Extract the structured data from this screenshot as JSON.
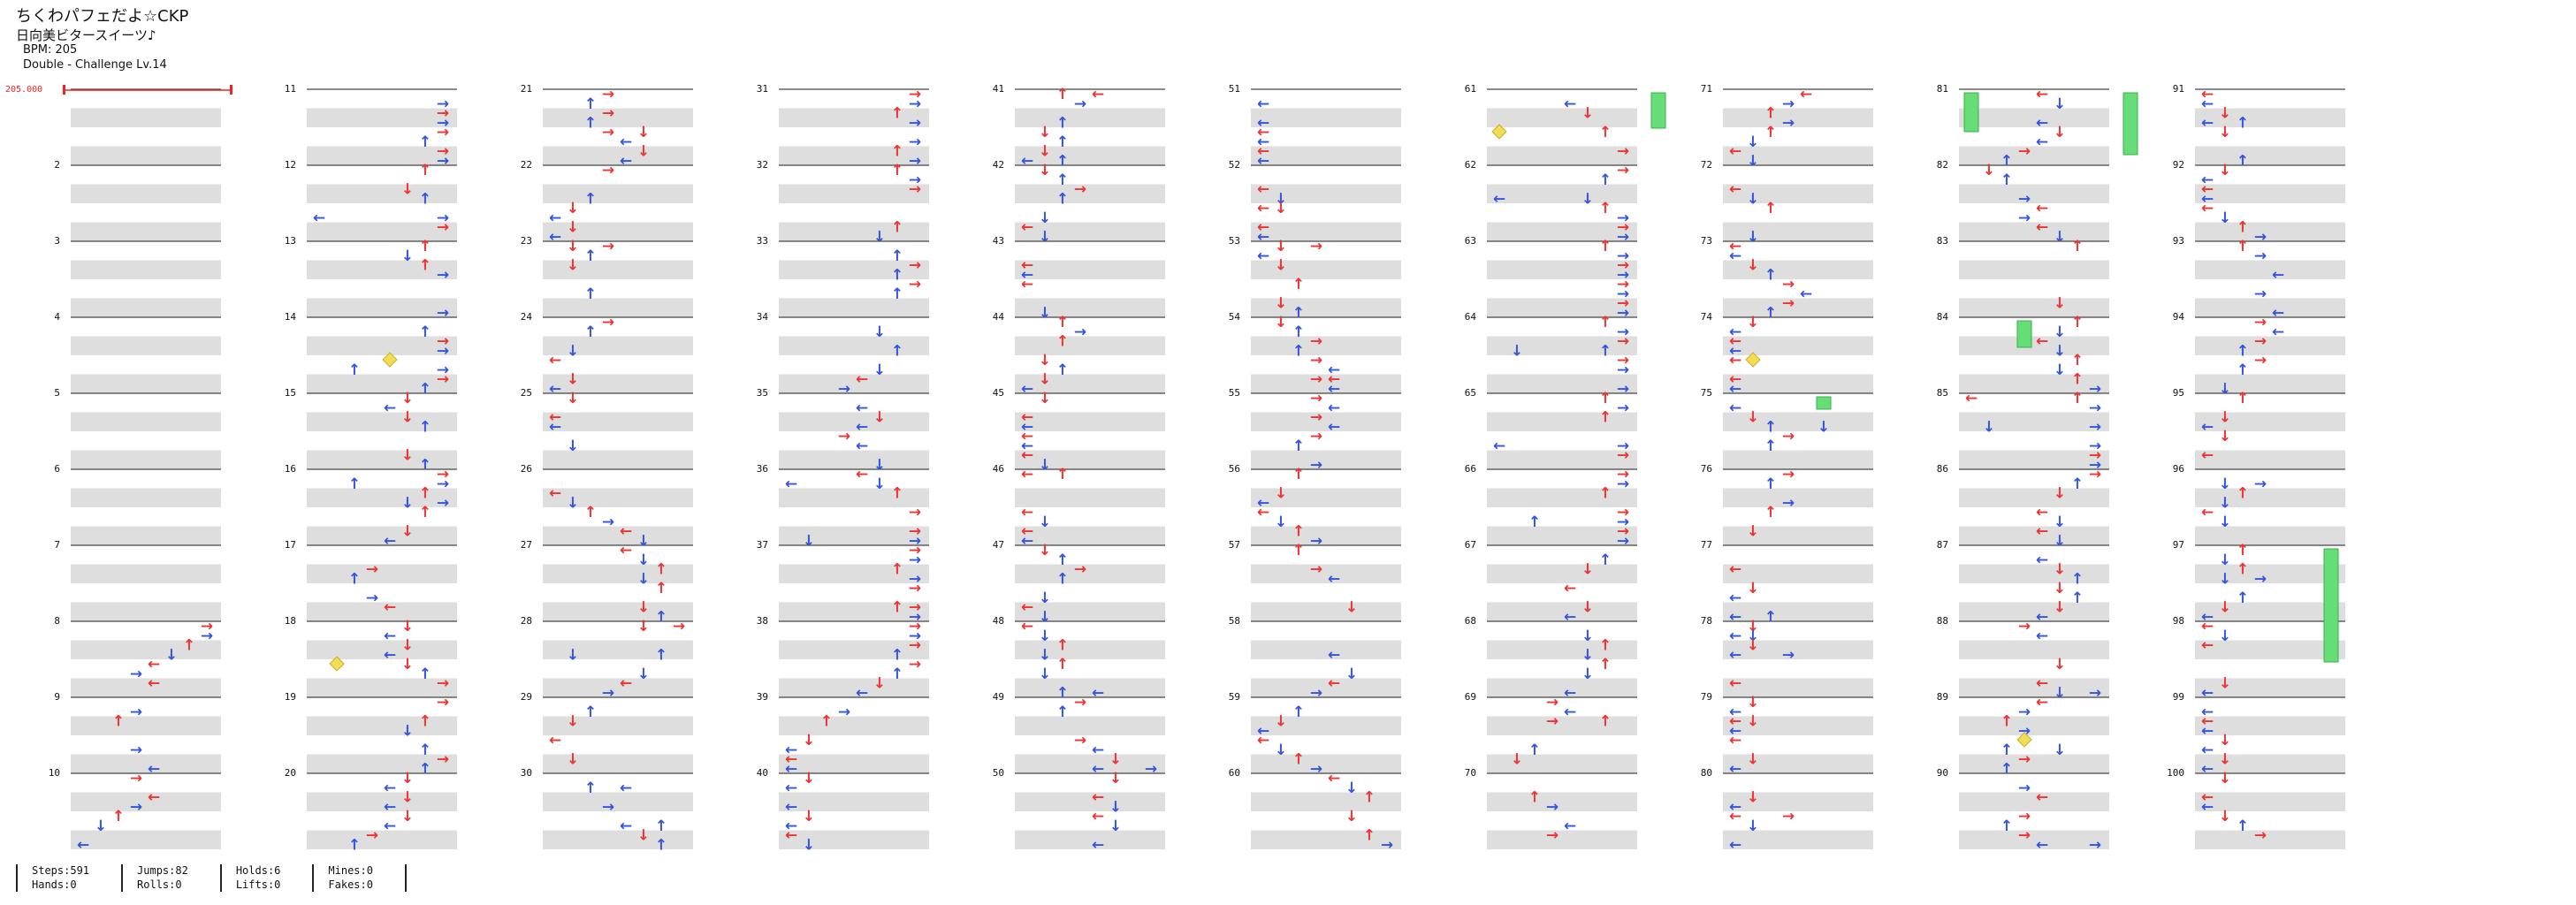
{
  "title": "ちくわパフェだよ☆CKP",
  "artist": "日向美ビタースイーツ♪",
  "bpm_text": "BPM: 205",
  "difficulty_text": "Double - Challenge Lv.14",
  "bpm_marker": "205.000",
  "measure_numbers": [
    "",
    "2",
    "3",
    "4",
    "5",
    "6",
    "7",
    "8",
    "9",
    "10",
    "11",
    "12",
    "13",
    "14",
    "15",
    "16",
    "17",
    "18",
    "19",
    "20",
    "21",
    "22",
    "23",
    "24",
    "25",
    "26",
    "27",
    "28",
    "29",
    "30",
    "31",
    "32",
    "33",
    "34",
    "35",
    "36",
    "37",
    "38",
    "39",
    "40",
    "41",
    "42",
    "43",
    "44",
    "45",
    "46",
    "47",
    "48",
    "49",
    "50",
    "51",
    "52",
    "53",
    "54",
    "55",
    "56",
    "57",
    "58",
    "59",
    "60",
    "61",
    "62",
    "63",
    "64",
    "65",
    "66",
    "67",
    "68",
    "69",
    "70",
    "71",
    "72",
    "73",
    "74",
    "75",
    "76",
    "77",
    "78",
    "79",
    "80",
    "81",
    "82",
    "83",
    "84",
    "85",
    "86",
    "87",
    "88",
    "89",
    "90",
    "91",
    "92",
    "93",
    "94",
    "95",
    "96",
    "97",
    "98",
    "99",
    "100"
  ],
  "stats": [
    {
      "a": "Steps:591",
      "b": "Hands:0"
    },
    {
      "a": "Jumps:82",
      "b": "Rolls:0"
    },
    {
      "a": "Holds:6",
      "b": "Lifts:0"
    },
    {
      "a": "Mines:0",
      "b": "Fakes:0"
    }
  ],
  "colors": {
    "quarter": "#ee3333",
    "eighth": "#3355dd",
    "sixteenth": "#f2dd55",
    "hold": "#66dd77",
    "band": "#dedede"
  }
}
